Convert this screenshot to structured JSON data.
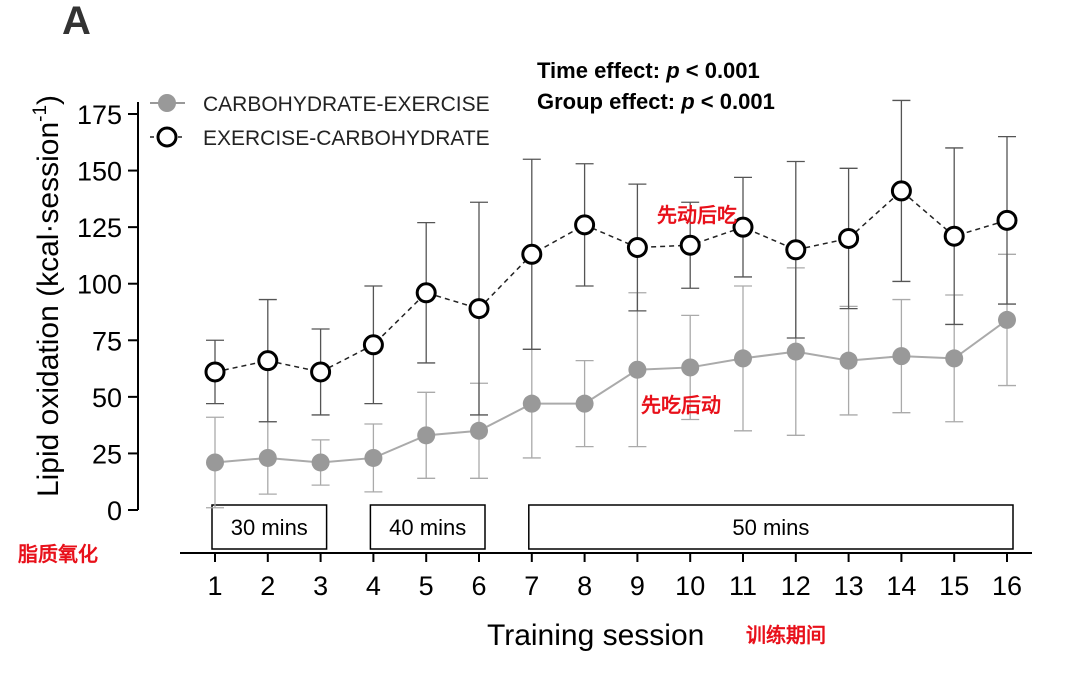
{
  "panel_letter": "A",
  "chart_data": {
    "type": "line",
    "xlabel": "Training session",
    "ylabel": "Lipid oxidation (kcal·session",
    "ylabel_sup": "-1",
    "ylabel_close": ")",
    "x": [
      1,
      2,
      3,
      4,
      5,
      6,
      7,
      8,
      9,
      10,
      11,
      12,
      13,
      14,
      15,
      16
    ],
    "ylim": [
      0,
      175
    ],
    "yticks": [
      0,
      25,
      50,
      75,
      100,
      125,
      150,
      175
    ],
    "grid": false,
    "legend": "top-left",
    "series": [
      {
        "name": "CARBOHYDRATE-EXERCISE",
        "marker": "filled-circle",
        "line": "solid",
        "color": "#999999",
        "values": [
          21,
          23,
          21,
          23,
          33,
          35,
          47,
          47,
          62,
          63,
          67,
          70,
          66,
          68,
          67,
          84
        ],
        "error": [
          20,
          16,
          10,
          15,
          19,
          21,
          24,
          19,
          34,
          23,
          32,
          37,
          24,
          25,
          28,
          29
        ]
      },
      {
        "name": "EXERCISE-CARBOHYDRATE",
        "marker": "open-circle",
        "line": "dashed",
        "color": "#222222",
        "values": [
          61,
          66,
          61,
          73,
          96,
          89,
          113,
          126,
          116,
          117,
          125,
          115,
          120,
          141,
          121,
          128
        ],
        "error": [
          14,
          27,
          19,
          26,
          31,
          47,
          42,
          27,
          28,
          19,
          22,
          39,
          31,
          40,
          39,
          37
        ]
      }
    ],
    "annotations": {
      "stat1_prefix": "Time effect: ",
      "stat1_p": "p",
      "stat1_suffix": " < 0.001",
      "stat2_prefix": "Group effect: ",
      "stat2_p": "p",
      "stat2_suffix": " < 0.001"
    },
    "duration_boxes": [
      {
        "label": "30 mins",
        "from": 1,
        "to": 3
      },
      {
        "label": "40 mins",
        "from": 4,
        "to": 6
      },
      {
        "label": "50 mins",
        "from": 7,
        "to": 16
      }
    ]
  },
  "overlay_cn": {
    "upper_series": "先动后吃",
    "lower_series": "先吃后动",
    "y_axis": "脂质氧化",
    "x_axis": "训练期间"
  },
  "colors": {
    "cn_red": "#e8101a",
    "axis": "#000000"
  }
}
